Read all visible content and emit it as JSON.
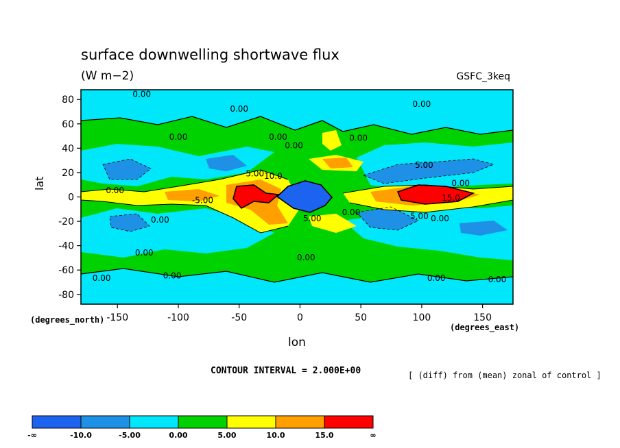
{
  "chart_data": {
    "type": "heatmap",
    "title": "surface downwelling shortwave flux",
    "units_label": "(W m−2)",
    "source_label": "GSFC_3keq",
    "xlabel": "lon",
    "ylabel": "lat",
    "x_units_note": "(degrees_east)",
    "y_units_note": "(degrees_north)",
    "xlim": [
      -180,
      175
    ],
    "ylim": [
      -88,
      88
    ],
    "x_ticks": [
      -150,
      -100,
      -50,
      0,
      50,
      100,
      150
    ],
    "y_ticks": [
      80,
      60,
      40,
      20,
      0,
      -20,
      -40,
      -60,
      -80
    ],
    "contour_interval_label": "CONTOUR INTERVAL = 2.000E+00",
    "note": "[ (diff) from (mean) zonal of control ]",
    "contour_labels": [
      {
        "text": "0.00",
        "lon": -130,
        "lat": 82
      },
      {
        "text": "0.00",
        "lon": -50,
        "lat": 70
      },
      {
        "text": "0.00",
        "lon": 100,
        "lat": 74
      },
      {
        "text": "0.00",
        "lon": -100,
        "lat": 47
      },
      {
        "text": "0.00",
        "lon": -18,
        "lat": 47
      },
      {
        "text": "0.00",
        "lon": -5,
        "lat": 40
      },
      {
        "text": "0.00",
        "lon": 48,
        "lat": 46
      },
      {
        "text": "5.00",
        "lon": -37,
        "lat": 17
      },
      {
        "text": "10.0",
        "lon": -22,
        "lat": 15
      },
      {
        "text": "5.00",
        "lon": 102,
        "lat": 24
      },
      {
        "text": "0.00",
        "lon": 132,
        "lat": 9
      },
      {
        "text": "0.00",
        "lon": -152,
        "lat": 3
      },
      {
        "text": "-5.00",
        "lon": -80,
        "lat": -5
      },
      {
        "text": "15.0",
        "lon": 124,
        "lat": -3
      },
      {
        "text": "0.00",
        "lon": -115,
        "lat": -21
      },
      {
        "text": "5.00",
        "lon": 10,
        "lat": -20
      },
      {
        "text": "0.00",
        "lon": 42,
        "lat": -15
      },
      {
        "text": "5.00",
        "lon": 98,
        "lat": -18
      },
      {
        "text": "0.00",
        "lon": 115,
        "lat": -20
      },
      {
        "text": "0.00",
        "lon": -128,
        "lat": -48
      },
      {
        "text": "0.00",
        "lon": 5,
        "lat": -52
      },
      {
        "text": "0.00",
        "lon": -163,
        "lat": -69
      },
      {
        "text": "0.00",
        "lon": -105,
        "lat": -67
      },
      {
        "text": "0.00",
        "lon": 112,
        "lat": -69
      },
      {
        "text": "0.00",
        "lon": 162,
        "lat": -70
      }
    ],
    "colorbar": {
      "colors": [
        "#1c64f0",
        "#1e91e6",
        "#00e6fa",
        "#00d200",
        "#ffff00",
        "#ffa000",
        "#ff0000"
      ],
      "labels": [
        "-∞",
        "-10.0",
        "-5.00",
        "0.00",
        "5.00",
        "10.0",
        "15.0",
        "∞"
      ]
    }
  }
}
